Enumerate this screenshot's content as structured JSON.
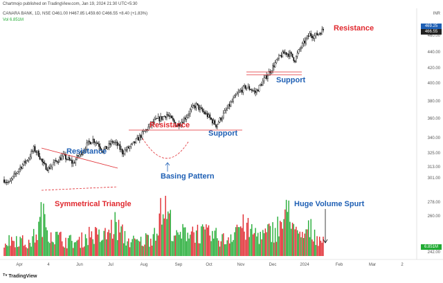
{
  "header": {
    "published": "Chartmojo published on TradingView.com, Jan 19, 2024 21:30 UTC+5:30",
    "symbol_line": "CANARA BANK, 1D, NSE  O461.00 H467.85 L459.60 C466.55 +8.40 (+1.83%)",
    "volume_line": "Vol  6.851M"
  },
  "axis": {
    "currency": "INR",
    "y_ticks": [
      "460.00",
      "440.00",
      "420.00",
      "400.00",
      "380.00",
      "360.00",
      "340.00",
      "325.00",
      "313.00",
      "301.00",
      "278.00",
      "260.00",
      "242.00"
    ],
    "x_ticks": [
      "Apr",
      "4",
      "Jun",
      "Jul",
      "Aug",
      "Sep",
      "Oct",
      "Nov",
      "Dec",
      "2024",
      "Feb",
      "Mar",
      "2"
    ],
    "last_price": "466.55",
    "high_price": "469.25",
    "volume_label": "6.851M"
  },
  "annotations": {
    "resistance_top": "Resistance",
    "support_top": "Support",
    "resistance_mid": "Resistance",
    "support_mid": "Support",
    "resistance_left": "Resistance",
    "basing_pattern": "Basing Pattern",
    "sym_triangle": "Symmetrical Triangle",
    "volume_spurt": "Huge Volume Spurt"
  },
  "logo": "TradingView",
  "colors": {
    "up": "#089981",
    "down": "#f23645",
    "vol_up": "#22ab34",
    "vol_down": "#e0282e",
    "annotation_red": "#e0282e",
    "annotation_blue": "#1e5fb4"
  },
  "chart_data": {
    "type": "candlestick",
    "symbol": "CANARA BANK",
    "timeframe": "1D",
    "y_range": [
      235,
      475
    ],
    "price_path": [
      [
        0,
        300
      ],
      [
        4,
        296
      ],
      [
        8,
        304
      ],
      [
        12,
        312
      ],
      [
        16,
        318
      ],
      [
        20,
        324
      ],
      [
        24,
        334
      ],
      [
        28,
        328
      ],
      [
        32,
        316
      ],
      [
        36,
        312
      ],
      [
        40,
        318
      ],
      [
        44,
        322
      ],
      [
        48,
        326
      ],
      [
        52,
        322
      ],
      [
        56,
        318
      ],
      [
        60,
        326
      ],
      [
        64,
        332
      ],
      [
        68,
        340
      ],
      [
        72,
        344
      ],
      [
        76,
        340
      ],
      [
        80,
        332
      ],
      [
        84,
        336
      ],
      [
        88,
        342
      ],
      [
        92,
        338
      ],
      [
        96,
        330
      ],
      [
        100,
        334
      ],
      [
        104,
        338
      ],
      [
        108,
        344
      ],
      [
        112,
        350
      ],
      [
        116,
        356
      ],
      [
        120,
        362
      ],
      [
        124,
        366
      ],
      [
        128,
        368
      ],
      [
        132,
        372
      ],
      [
        136,
        366
      ],
      [
        140,
        360
      ],
      [
        144,
        364
      ],
      [
        148,
        370
      ],
      [
        152,
        378
      ],
      [
        156,
        382
      ],
      [
        160,
        376
      ],
      [
        164,
        372
      ],
      [
        168,
        366
      ],
      [
        172,
        360
      ],
      [
        176,
        368
      ],
      [
        180,
        376
      ],
      [
        184,
        384
      ],
      [
        188,
        392
      ],
      [
        192,
        398
      ],
      [
        196,
        402
      ],
      [
        200,
        400
      ],
      [
        204,
        396
      ],
      [
        208,
        404
      ],
      [
        212,
        412
      ],
      [
        216,
        420
      ],
      [
        220,
        428
      ],
      [
        224,
        436
      ],
      [
        228,
        440
      ],
      [
        232,
        438
      ],
      [
        236,
        432
      ],
      [
        240,
        444
      ],
      [
        244,
        452
      ],
      [
        248,
        460
      ],
      [
        252,
        458
      ],
      [
        256,
        462
      ],
      [
        260,
        466
      ]
    ],
    "volume_path": [
      [
        0,
        6
      ],
      [
        10,
        8
      ],
      [
        20,
        5
      ],
      [
        28,
        12
      ],
      [
        30,
        18
      ],
      [
        40,
        9
      ],
      [
        50,
        7
      ],
      [
        60,
        6
      ],
      [
        70,
        10
      ],
      [
        80,
        8
      ],
      [
        90,
        14
      ],
      [
        100,
        7
      ],
      [
        110,
        6
      ],
      [
        120,
        9
      ],
      [
        130,
        22
      ],
      [
        140,
        8
      ],
      [
        150,
        12
      ],
      [
        160,
        10
      ],
      [
        170,
        9
      ],
      [
        180,
        7
      ],
      [
        190,
        14
      ],
      [
        200,
        11
      ],
      [
        210,
        9
      ],
      [
        220,
        12
      ],
      [
        228,
        16
      ],
      [
        232,
        24
      ],
      [
        236,
        10
      ],
      [
        240,
        8
      ],
      [
        248,
        12
      ],
      [
        256,
        8
      ],
      [
        260,
        7
      ]
    ],
    "levels": [
      {
        "label": "Resistance",
        "price": 462
      },
      {
        "label": "Support",
        "price": 413
      },
      {
        "label": "Resistance",
        "price": 362
      },
      {
        "label": "Support",
        "price": 362
      }
    ]
  }
}
